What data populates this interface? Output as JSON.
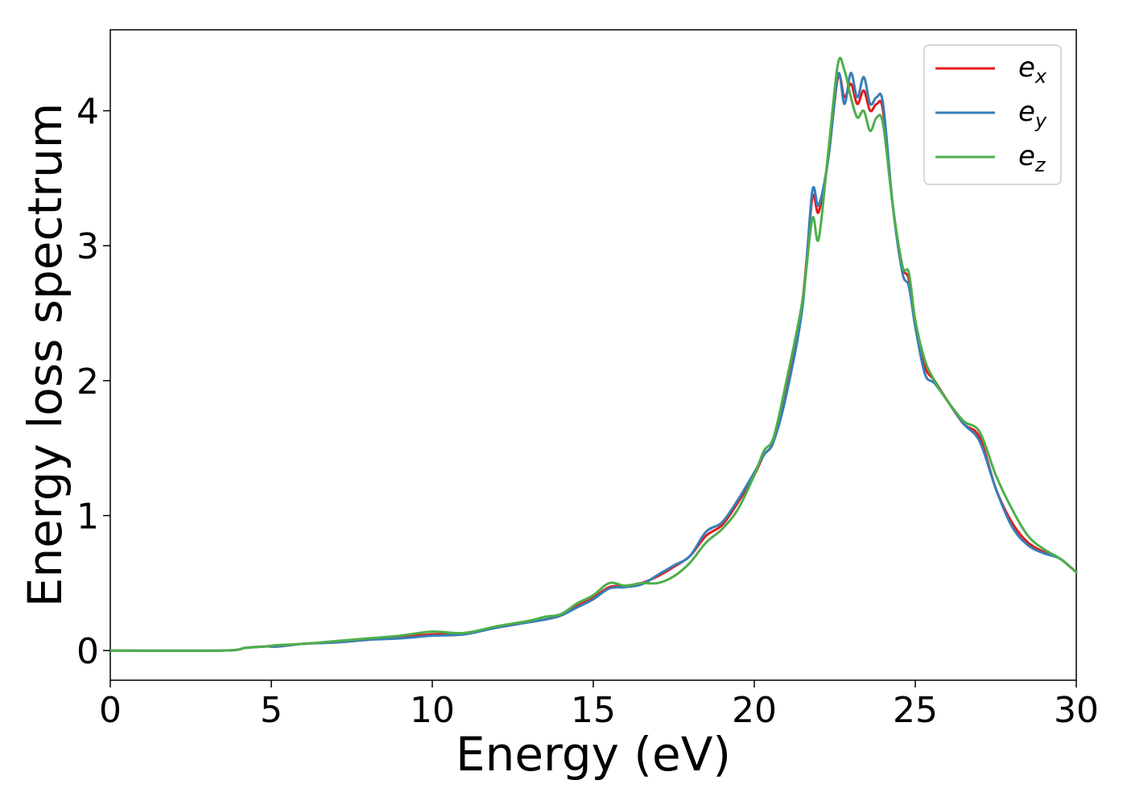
{
  "chart_data": {
    "type": "line",
    "title": "",
    "xlabel": "Energy (eV)",
    "ylabel": "Energy loss spectrum",
    "xlim": [
      0,
      30
    ],
    "ylim": [
      -0.22,
      4.6
    ],
    "xticks": [
      0,
      5,
      10,
      15,
      20,
      25,
      30
    ],
    "yticks": [
      0,
      1,
      2,
      3,
      4
    ],
    "xtick_labels": [
      "0",
      "5",
      "10",
      "15",
      "20",
      "25",
      "30"
    ],
    "ytick_labels": [
      "0",
      "1",
      "2",
      "3",
      "4"
    ],
    "grid": false,
    "legend_position": "top-right",
    "series": [
      {
        "name": "e_x",
        "legend_base": "e",
        "legend_sub": "x",
        "color": "#e41a1c",
        "x": [
          0,
          3.5,
          4.2,
          4.8,
          5.2,
          6,
          7,
          8,
          9,
          10,
          11,
          12,
          13,
          13.5,
          14,
          14.5,
          15,
          15.5,
          16,
          16.5,
          17,
          17.5,
          18,
          18.5,
          19,
          19.5,
          20,
          20.3,
          20.6,
          21,
          21.5,
          21.8,
          22.0,
          22.3,
          22.6,
          22.8,
          23.0,
          23.2,
          23.4,
          23.6,
          23.8,
          24.0,
          24.3,
          24.6,
          24.8,
          25.0,
          25.3,
          25.6,
          26.0,
          26.5,
          27.0,
          27.5,
          28.0,
          28.5,
          29.0,
          29.5,
          30
        ],
        "y": [
          0.0,
          0.0,
          0.02,
          0.03,
          0.03,
          0.05,
          0.06,
          0.08,
          0.1,
          0.12,
          0.13,
          0.17,
          0.21,
          0.23,
          0.26,
          0.33,
          0.39,
          0.47,
          0.48,
          0.5,
          0.55,
          0.62,
          0.7,
          0.85,
          0.93,
          1.1,
          1.3,
          1.45,
          1.55,
          1.95,
          2.6,
          3.35,
          3.25,
          3.65,
          4.25,
          4.1,
          4.2,
          4.05,
          4.15,
          4.0,
          4.05,
          4.0,
          3.3,
          2.85,
          2.75,
          2.4,
          2.1,
          2.0,
          1.85,
          1.68,
          1.58,
          1.2,
          0.95,
          0.8,
          0.73,
          0.68,
          0.58
        ]
      },
      {
        "name": "e_y",
        "legend_base": "e",
        "legend_sub": "y",
        "color": "#377eb8",
        "x": [
          0,
          3.5,
          4.2,
          4.8,
          5.2,
          6,
          7,
          8,
          9,
          10,
          11,
          12,
          13,
          13.5,
          14,
          14.5,
          15,
          15.5,
          16,
          16.5,
          17,
          17.5,
          18,
          18.5,
          19,
          19.5,
          20,
          20.3,
          20.6,
          21,
          21.5,
          21.8,
          22.0,
          22.3,
          22.6,
          22.8,
          23.0,
          23.2,
          23.4,
          23.6,
          23.8,
          24.0,
          24.3,
          24.6,
          24.8,
          25.0,
          25.3,
          25.6,
          26.0,
          26.5,
          27.0,
          27.5,
          28.0,
          28.5,
          29.0,
          29.5,
          30
        ],
        "y": [
          0.0,
          0.0,
          0.02,
          0.03,
          0.03,
          0.05,
          0.06,
          0.08,
          0.09,
          0.11,
          0.12,
          0.17,
          0.21,
          0.23,
          0.26,
          0.32,
          0.38,
          0.46,
          0.47,
          0.49,
          0.56,
          0.63,
          0.7,
          0.88,
          0.95,
          1.12,
          1.32,
          1.45,
          1.55,
          1.9,
          2.55,
          3.4,
          3.3,
          3.65,
          4.27,
          4.05,
          4.28,
          4.1,
          4.25,
          4.05,
          4.1,
          4.05,
          3.3,
          2.8,
          2.7,
          2.4,
          2.05,
          1.98,
          1.85,
          1.68,
          1.55,
          1.2,
          0.92,
          0.78,
          0.72,
          0.68,
          0.58
        ]
      },
      {
        "name": "e_z",
        "legend_base": "e",
        "legend_sub": "z",
        "color": "#4daf4a",
        "x": [
          0,
          3.5,
          4.2,
          4.8,
          5.2,
          6,
          7,
          8,
          9,
          10,
          11,
          12,
          13,
          13.5,
          14,
          14.5,
          15,
          15.5,
          16,
          16.5,
          17,
          17.5,
          18,
          18.5,
          19,
          19.5,
          20,
          20.3,
          20.6,
          21,
          21.5,
          21.8,
          22.0,
          22.3,
          22.6,
          22.8,
          23.0,
          23.2,
          23.4,
          23.6,
          23.8,
          24.0,
          24.3,
          24.6,
          24.8,
          25.0,
          25.3,
          25.6,
          26.0,
          26.5,
          27.0,
          27.5,
          28.0,
          28.5,
          29.0,
          29.5,
          30
        ],
        "y": [
          0.0,
          0.0,
          0.02,
          0.03,
          0.04,
          0.05,
          0.07,
          0.09,
          0.11,
          0.14,
          0.13,
          0.18,
          0.22,
          0.25,
          0.27,
          0.35,
          0.41,
          0.5,
          0.48,
          0.5,
          0.5,
          0.55,
          0.65,
          0.8,
          0.9,
          1.05,
          1.3,
          1.48,
          1.58,
          2.0,
          2.6,
          3.2,
          3.05,
          3.7,
          4.35,
          4.3,
          4.1,
          3.95,
          4.0,
          3.85,
          3.95,
          3.9,
          3.3,
          2.85,
          2.8,
          2.45,
          2.15,
          2.0,
          1.85,
          1.7,
          1.62,
          1.3,
          1.05,
          0.85,
          0.75,
          0.68,
          0.58
        ]
      }
    ]
  }
}
